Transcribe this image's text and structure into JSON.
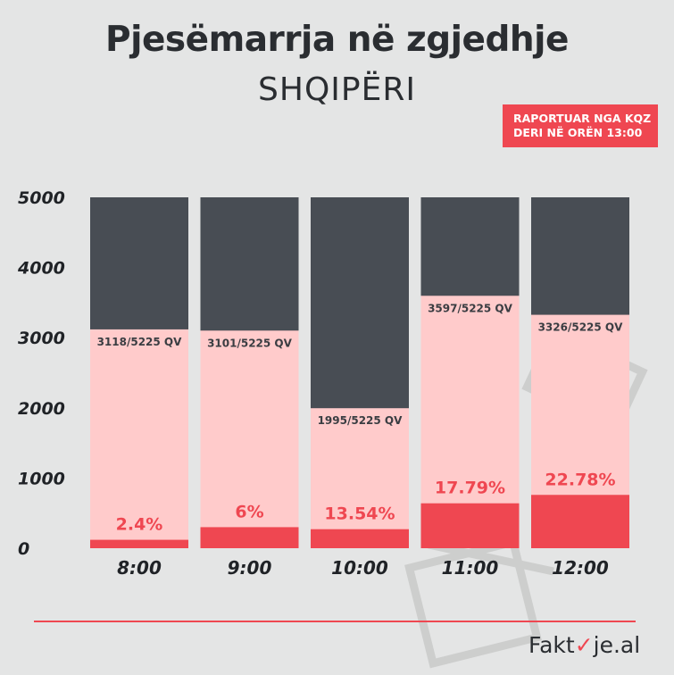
{
  "header": {
    "title": "Pjesëmarrja në zgjedhje",
    "subtitle": "SHQIPËRI",
    "badge_line1": "RAPORTUAR NGA KQZ",
    "badge_line2": "DERI NË ORËN 13:00"
  },
  "footer": {
    "logo_prefix": "Fakt",
    "logo_check": "✓",
    "logo_suffix": "je.al"
  },
  "colors": {
    "background": "#e4e5e5",
    "total": "#484d54",
    "reported": "#ffcbcb",
    "turnout": "#ef4751",
    "label_dark": "#3a3d42",
    "accent": "#ef4751"
  },
  "chart_data": {
    "type": "bar",
    "categories": [
      "8:00",
      "9:00",
      "10:00",
      "11:00",
      "12:00"
    ],
    "ylim": [
      0,
      5000
    ],
    "yticks": [
      0,
      1000,
      2000,
      3000,
      4000,
      5000
    ],
    "grid": false,
    "series": [
      {
        "values": [
          5000,
          5000,
          5000,
          5000,
          5000
        ]
      },
      {
        "values": [
          3118,
          3101,
          1995,
          3597,
          3326
        ]
      },
      {
        "values": [
          120,
          300,
          271,
          640,
          760
        ]
      }
    ],
    "reported_labels": [
      "3118/5225 QV",
      "3101/5225 QV",
      "1995/5225 QV",
      "3597/5225 QV",
      "3326/5225 QV"
    ],
    "percent_labels": [
      "2.4%",
      "6%",
      "13.54%",
      "17.79%",
      "22.78%"
    ]
  }
}
